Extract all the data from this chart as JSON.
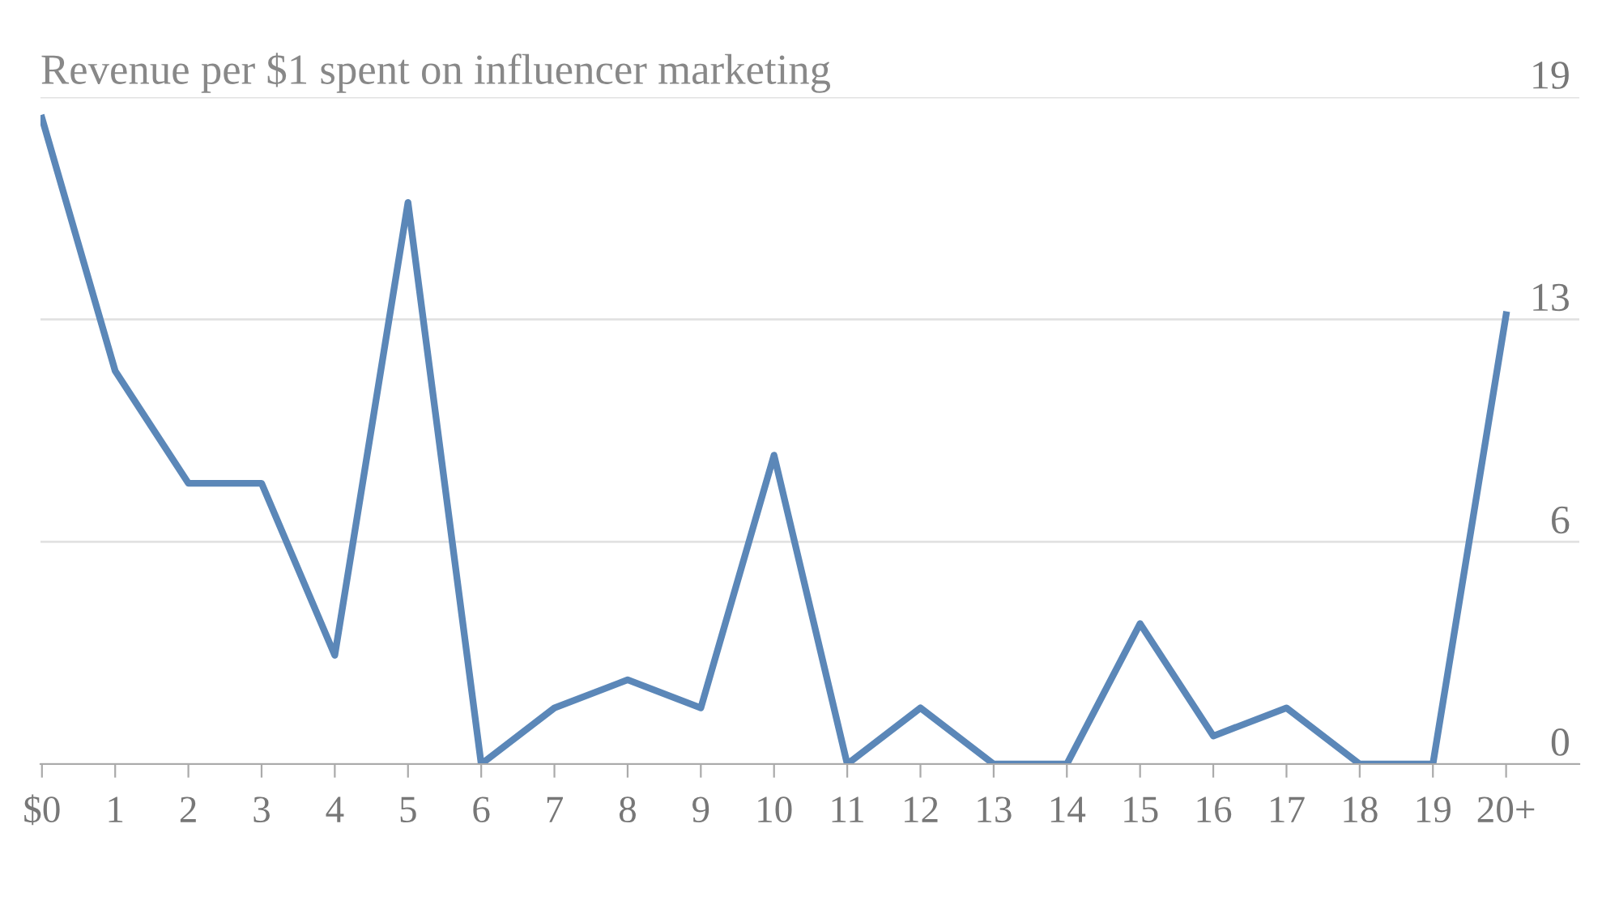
{
  "chart_data": {
    "type": "line",
    "title": "Revenue per $1 spent on influencer marketing",
    "categories": [
      "$0",
      "1",
      "2",
      "3",
      "4",
      "5",
      "6",
      "7",
      "8",
      "9",
      "10",
      "11",
      "12",
      "13",
      "14",
      "15",
      "16",
      "17",
      "18",
      "19",
      "20+"
    ],
    "series": [
      {
        "color": "#5b87b8",
        "values": [
          18.4,
          11.2,
          8.0,
          8.0,
          3.1,
          16.0,
          0,
          1.6,
          2.4,
          1.6,
          8.8,
          0,
          1.6,
          0,
          0,
          4.0,
          0.8,
          1.6,
          0,
          0,
          12.8
        ]
      }
    ],
    "ylim": [
      0,
      19
    ],
    "yticks": [
      0,
      {
        "value": 6.33,
        "label": "6"
      },
      {
        "value": 12.67,
        "label": "13"
      },
      19
    ],
    "grid": "y",
    "legend": false,
    "marker": "none",
    "line_style": "solid"
  }
}
